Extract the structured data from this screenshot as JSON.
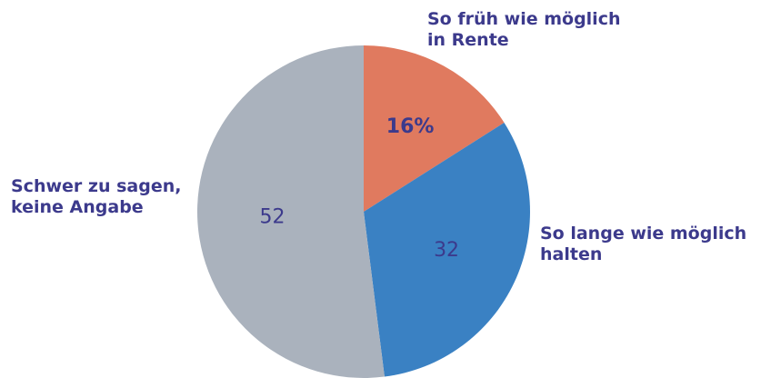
{
  "chart_data": {
    "type": "pie",
    "categories": [
      [
        "So früh wie möglich",
        "in Rente"
      ],
      [
        "So lange wie möglich",
        "halten"
      ],
      [
        "Schwer zu sagen,",
        "keine Angabe"
      ]
    ],
    "values": [
      16,
      32,
      52
    ],
    "data_labels": [
      "16%",
      "32",
      "52"
    ],
    "colors": [
      "#e07a5f",
      "#3a81c3",
      "#aab2bd"
    ],
    "label_color": "#3c3a8c"
  }
}
